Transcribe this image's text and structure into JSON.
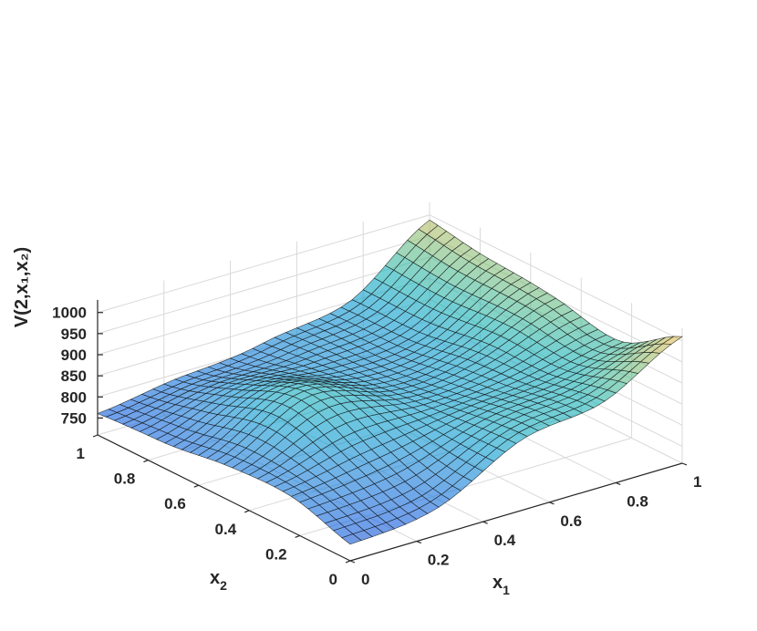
{
  "chart_data": {
    "type": "surface",
    "title": "",
    "colormap": "parula",
    "face_alpha": 0.6,
    "grid": true,
    "xlabel": {
      "main": "x",
      "sub": "1"
    },
    "ylabel": {
      "main": "x",
      "sub": "2"
    },
    "zlabel": "V(2,x₁,x₂)",
    "xlim": [
      0,
      1
    ],
    "ylim": [
      0,
      1
    ],
    "zlim": [
      710,
      1030
    ],
    "x_ticks": [
      "0",
      "0.2",
      "0.4",
      "0.6",
      "0.8",
      "1"
    ],
    "y_ticks": [
      "0",
      "0.2",
      "0.4",
      "0.6",
      "0.8",
      "1"
    ],
    "z_ticks": [
      "750",
      "800",
      "850",
      "900",
      "950",
      "1000"
    ],
    "x": [
      0,
      0.25,
      0.5,
      0.75,
      1
    ],
    "y": [
      0,
      0.25,
      0.5,
      0.75,
      1
    ],
    "z": [
      [
        740,
        780,
        870,
        900,
        1020
      ],
      [
        790,
        830,
        860,
        880,
        930
      ],
      [
        800,
        880,
        850,
        880,
        940
      ],
      [
        770,
        840,
        830,
        850,
        965
      ],
      [
        750,
        800,
        810,
        840,
        1000
      ]
    ],
    "series": [
      {
        "name": "",
        "note": ""
      }
    ]
  }
}
